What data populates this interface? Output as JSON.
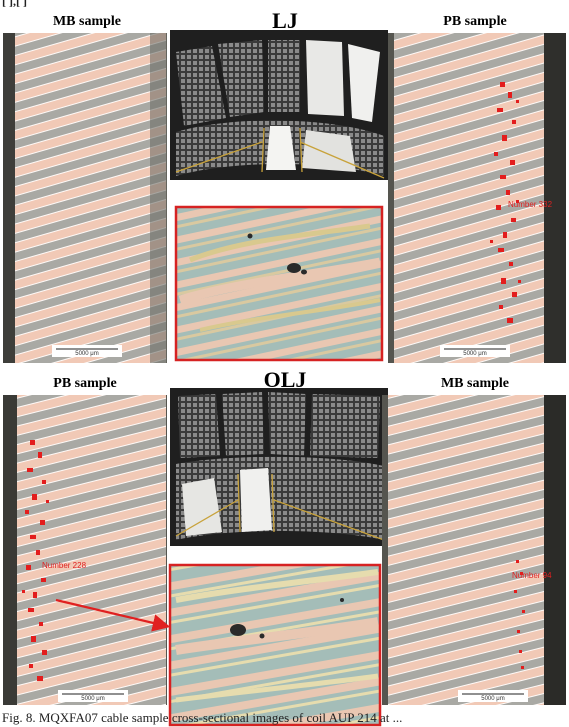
{
  "page": {
    "top_line_fragment": "[  ],[  ]",
    "caption": "Fig. 8.   MQXFA07 cable sample cross-sectional images of coil AUP 214 at ..."
  },
  "figure_top": {
    "label_left": "MB sample",
    "label_center": "LJ",
    "label_right": "PB sample",
    "scalebar_left": "5000 μm",
    "scalebar_right": "5000 μm",
    "number_label": "Number 332"
  },
  "figure_bottom": {
    "label_left": "PB sample",
    "label_center": "OLJ",
    "label_right": "MB sample",
    "scalebar_left": "5000 μm",
    "scalebar_right": "5000 μm",
    "number_label_left": "Number 228",
    "number_label_right": "Number 94"
  },
  "colors": {
    "sample_bg": "#a9a9a4",
    "strand": "#f1c9b6",
    "strand_edge": "#ffffff",
    "defect_red": "#e31d1d",
    "inset_frame": "#d62222",
    "arrow": "#e02020",
    "leader_line": "#c8a23a",
    "micro_bg": "#a4bdb8",
    "micro_strand": "#e9c7b2"
  }
}
